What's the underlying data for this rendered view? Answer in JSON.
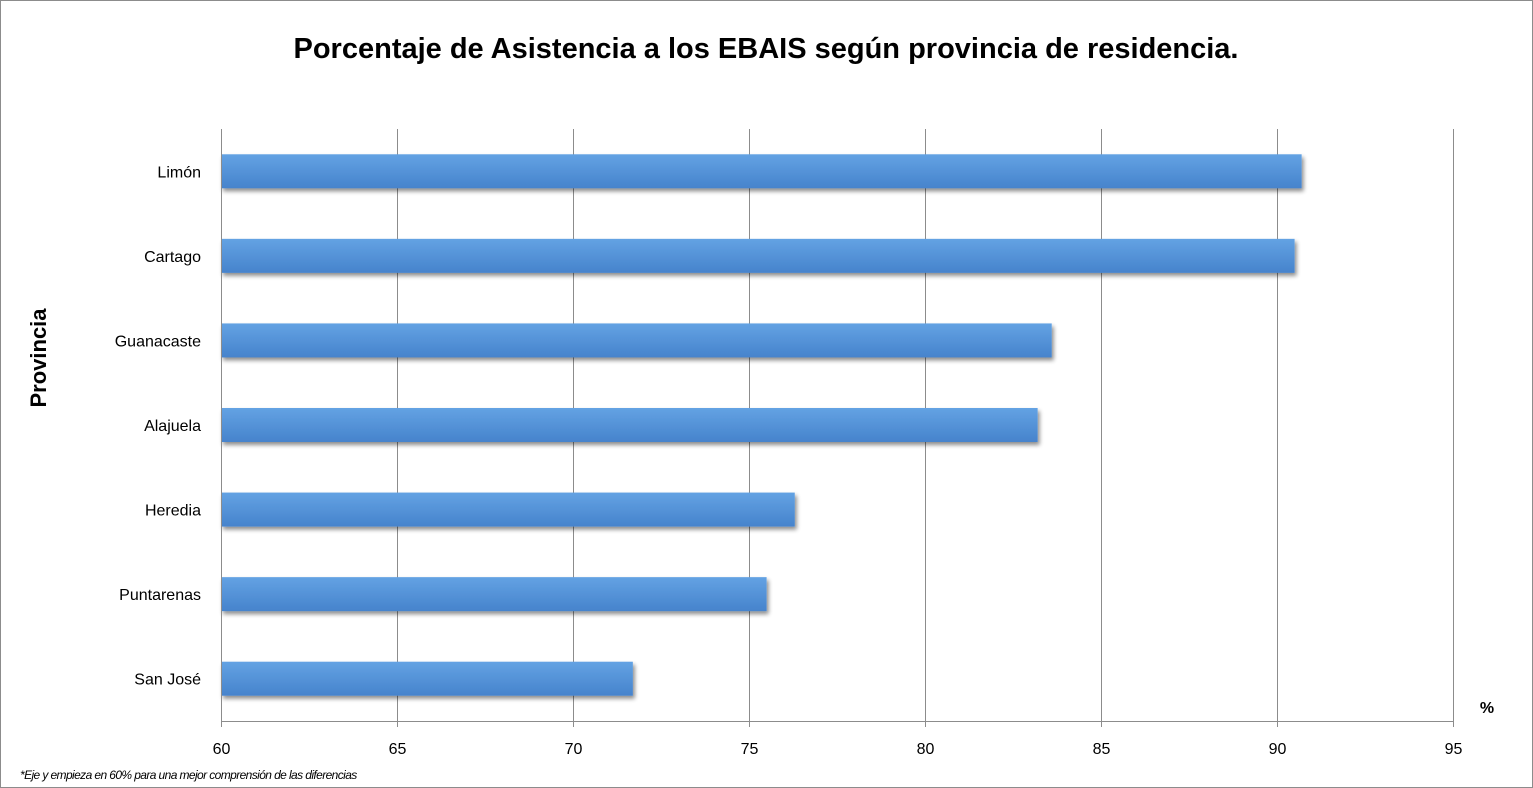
{
  "chart_data": {
    "type": "bar",
    "orientation": "horizontal",
    "title": "Porcentaje de Asistencia a los EBAIS según provincia de residencia.",
    "ylabel": "Provincia",
    "xlabel": "%",
    "categories": [
      "Limón",
      "Cartago",
      "Guanacaste",
      "Alajuela",
      "Heredia",
      "Puntarenas",
      "San José"
    ],
    "values": [
      90.7,
      90.5,
      83.6,
      83.2,
      76.3,
      75.5,
      71.7
    ],
    "xlim": [
      60,
      95
    ],
    "xticks": [
      "60",
      "65",
      "70",
      "75",
      "80",
      "85",
      "90",
      "95"
    ],
    "grid": true,
    "legend": "none",
    "footnote": "*Eje y empieza en 60% para una mejor comprensión de las diferencias",
    "colors": {
      "bar_top": "#63a2e3",
      "bar_bottom": "#4683cc",
      "grid": "#8c8c8c"
    }
  }
}
